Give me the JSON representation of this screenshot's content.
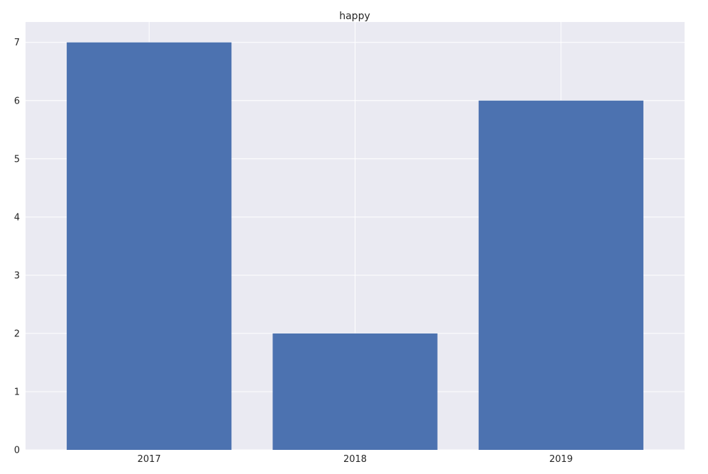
{
  "chart_data": {
    "type": "bar",
    "title": "happy",
    "xlabel": "",
    "ylabel": "",
    "categories": [
      "2017",
      "2018",
      "2019"
    ],
    "values": [
      7,
      2,
      6
    ],
    "ylim": [
      0,
      7.35
    ],
    "yticks": [
      "0",
      "1",
      "2",
      "3",
      "4",
      "5",
      "6",
      "7"
    ],
    "grid": true,
    "legend": "none",
    "colors": {
      "bar": "#4c72b0",
      "background": "#eaeaf2",
      "grid": "#ffffff",
      "text": "#262626"
    }
  }
}
